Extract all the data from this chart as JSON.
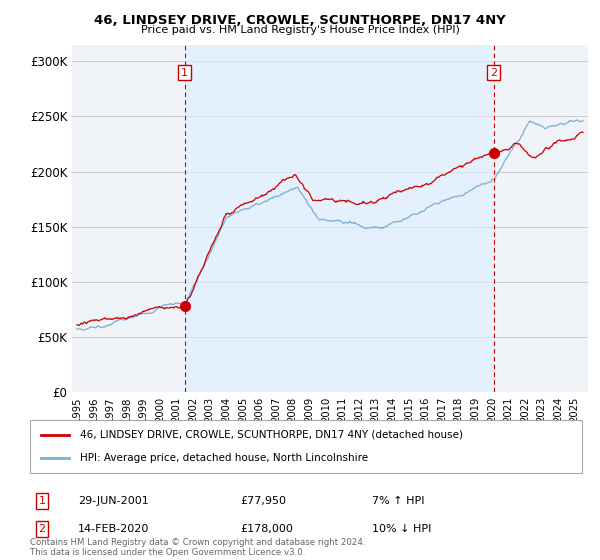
{
  "title": "46, LINDSEY DRIVE, CROWLE, SCUNTHORPE, DN17 4NY",
  "subtitle": "Price paid vs. HM Land Registry's House Price Index (HPI)",
  "ylabel_ticks": [
    "£0",
    "£50K",
    "£100K",
    "£150K",
    "£200K",
    "£250K",
    "£300K"
  ],
  "ytick_values": [
    0,
    50000,
    100000,
    150000,
    200000,
    250000,
    300000
  ],
  "ylim": [
    0,
    315000
  ],
  "xlim_start": 1994.7,
  "xlim_end": 2025.8,
  "purchase1_date": 2001.49,
  "purchase1_price": 77950,
  "purchase1_label": "1",
  "purchase2_date": 2020.12,
  "purchase2_price": 178000,
  "purchase2_label": "2",
  "red_color": "#cc0000",
  "blue_color": "#7ab0d4",
  "shade_color": "#ddeeff",
  "vline_color": "#cc0000",
  "grid_color": "#cccccc",
  "bg_color": "#f0f4f8",
  "legend_line1": "46, LINDSEY DRIVE, CROWLE, SCUNTHORPE, DN17 4NY (detached house)",
  "legend_line2": "HPI: Average price, detached house, North Lincolnshire",
  "marker1_date_str": "29-JUN-2001",
  "marker1_price_str": "£77,950",
  "marker1_hpi_str": "7% ↑ HPI",
  "marker2_date_str": "14-FEB-2020",
  "marker2_price_str": "£178,000",
  "marker2_hpi_str": "10% ↓ HPI",
  "footer": "Contains HM Land Registry data © Crown copyright and database right 2024.\nThis data is licensed under the Open Government Licence v3.0."
}
